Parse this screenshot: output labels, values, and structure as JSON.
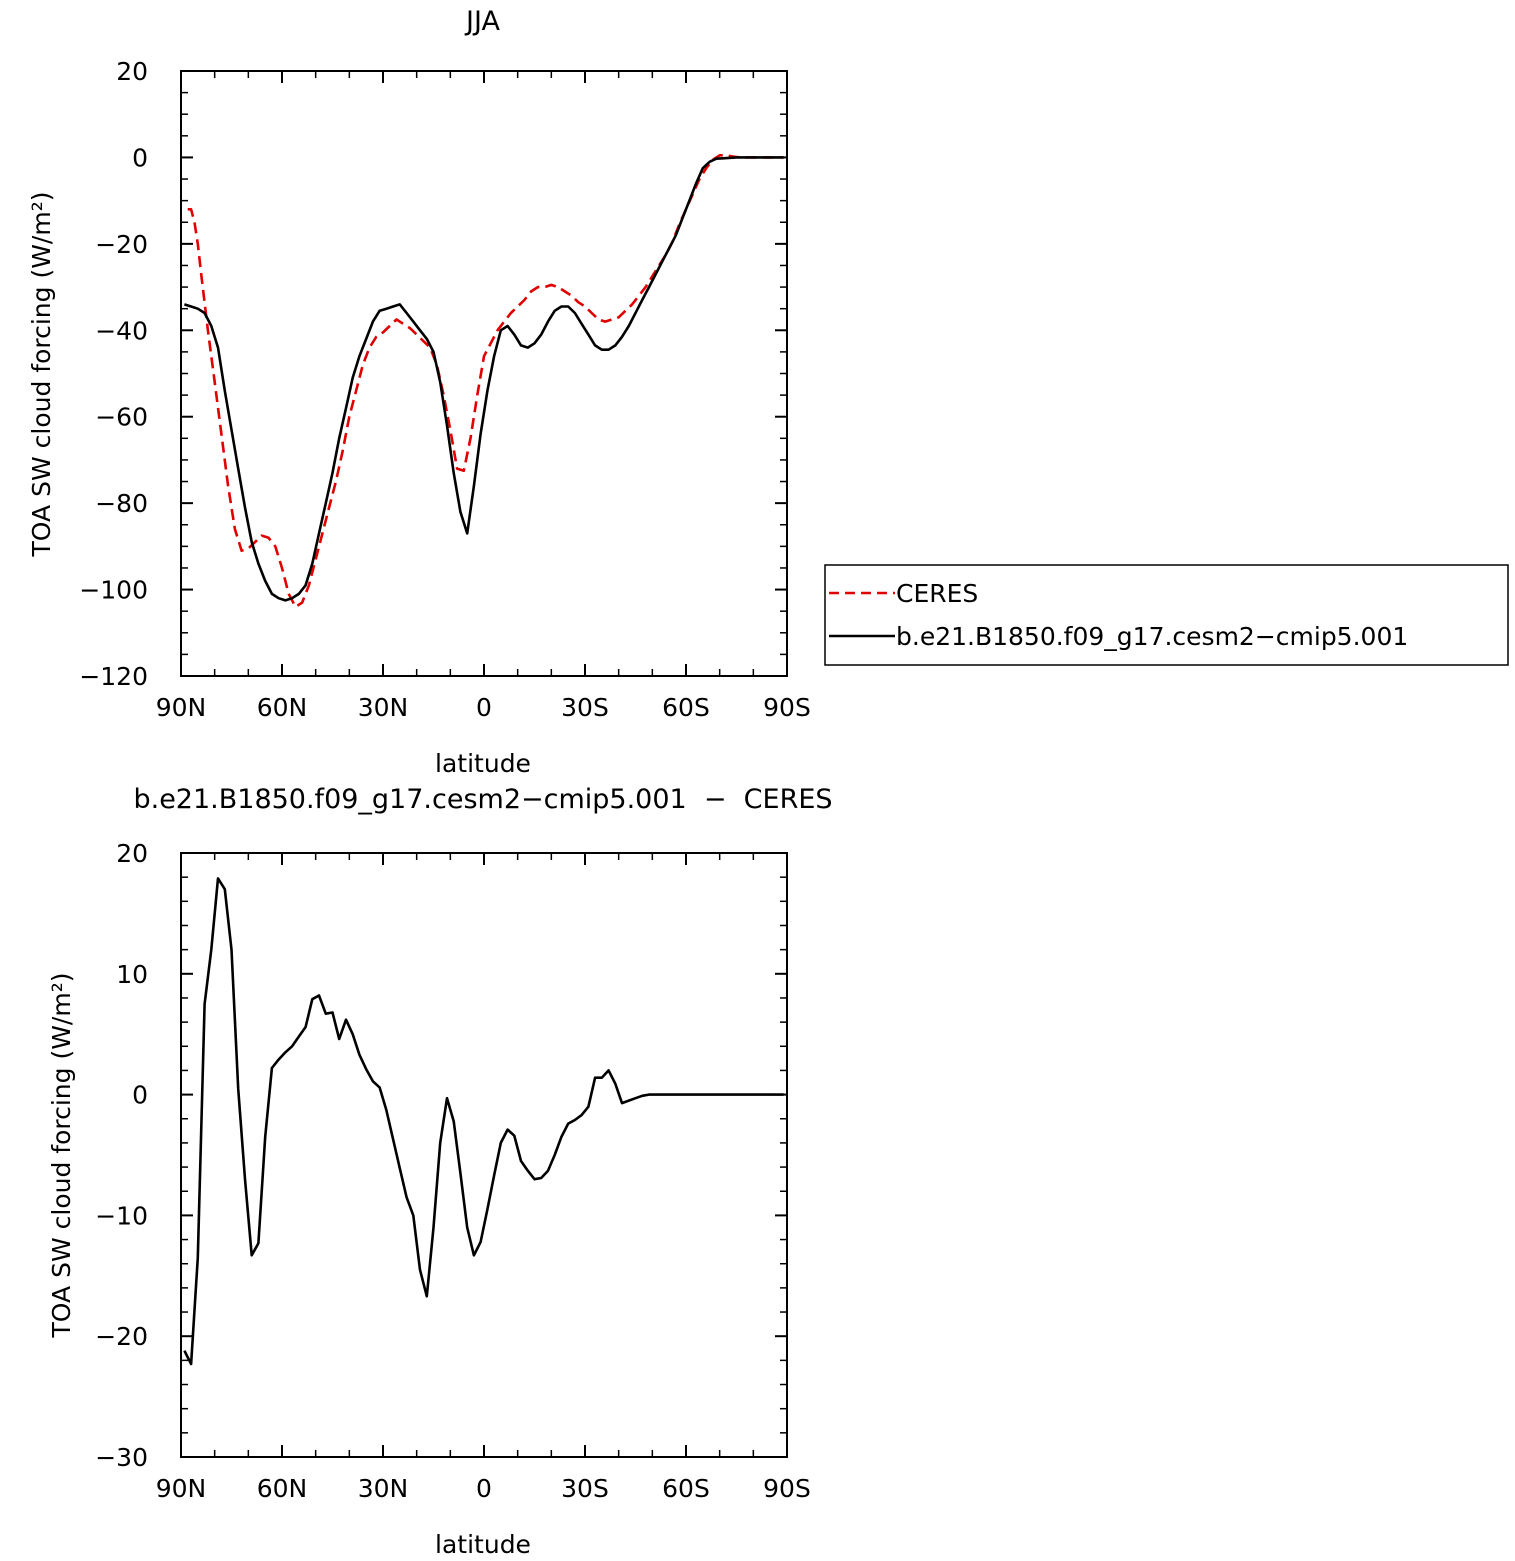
{
  "chart_data": [
    {
      "type": "line",
      "title": "JJA",
      "xlabel": "latitude",
      "ylabel": "TOA SW cloud forcing (W/m²)",
      "ylim": [
        -120,
        20
      ],
      "xlim": [
        90,
        -90
      ],
      "x_tick_values": [
        90,
        60,
        30,
        0,
        -30,
        -60,
        -90
      ],
      "x_tick_labels": [
        "90N",
        "60N",
        "30N",
        "0",
        "30S",
        "60S",
        "90S"
      ],
      "y_ticks": [
        20,
        0,
        -20,
        -40,
        -60,
        -80,
        -100,
        -120
      ],
      "y_tick_labels": [
        "20",
        "0",
        "−20",
        "−40",
        "−60",
        "−80",
        "−100",
        "−120"
      ],
      "legend": "right",
      "series": [
        {
          "name": "CERES",
          "color": "#e00000",
          "dash": "dashed",
          "points": [
            [
              88,
              -12
            ],
            [
              87,
              -12
            ],
            [
              86,
              -15
            ],
            [
              85,
              -20
            ],
            [
              84,
              -27
            ],
            [
              82,
              -40
            ],
            [
              80,
              -52
            ],
            [
              78,
              -64
            ],
            [
              76,
              -76
            ],
            [
              74,
              -86
            ],
            [
              72,
              -91
            ],
            [
              70,
              -90.5
            ],
            [
              68,
              -89
            ],
            [
              66,
              -87.5
            ],
            [
              64,
              -88
            ],
            [
              62,
              -90
            ],
            [
              60,
              -95
            ],
            [
              58,
              -101
            ],
            [
              56,
              -104
            ],
            [
              54,
              -103
            ],
            [
              52,
              -99
            ],
            [
              50,
              -93
            ],
            [
              48,
              -87
            ],
            [
              46,
              -81
            ],
            [
              44,
              -75
            ],
            [
              42,
              -68
            ],
            [
              40,
              -60
            ],
            [
              38,
              -54
            ],
            [
              36,
              -48
            ],
            [
              34,
              -44
            ],
            [
              32,
              -41.5
            ],
            [
              30,
              -40.5
            ],
            [
              28,
              -39
            ],
            [
              26,
              -37.5
            ],
            [
              24,
              -38.5
            ],
            [
              22,
              -39.5
            ],
            [
              20,
              -41
            ],
            [
              18,
              -42.5
            ],
            [
              16,
              -44
            ],
            [
              14,
              -48
            ],
            [
              12,
              -55
            ],
            [
              10,
              -63
            ],
            [
              8,
              -72
            ],
            [
              6,
              -72.5
            ],
            [
              4,
              -65
            ],
            [
              2,
              -55
            ],
            [
              0,
              -46
            ],
            [
              -2,
              -43
            ],
            [
              -4,
              -40
            ],
            [
              -6,
              -38
            ],
            [
              -8,
              -36
            ],
            [
              -10,
              -34.5
            ],
            [
              -12,
              -33
            ],
            [
              -14,
              -31
            ],
            [
              -16,
              -30
            ],
            [
              -18,
              -30
            ],
            [
              -20,
              -29.5
            ],
            [
              -22,
              -30
            ],
            [
              -24,
              -31
            ],
            [
              -26,
              -32
            ],
            [
              -28,
              -33.5
            ],
            [
              -30,
              -34.5
            ],
            [
              -32,
              -36
            ],
            [
              -34,
              -37.5
            ],
            [
              -36,
              -38
            ],
            [
              -38,
              -37.5
            ],
            [
              -40,
              -37
            ],
            [
              -42,
              -35.5
            ],
            [
              -44,
              -34
            ],
            [
              -46,
              -32
            ],
            [
              -48,
              -30
            ],
            [
              -50,
              -27.5
            ],
            [
              -52,
              -25
            ],
            [
              -54,
              -22.5
            ],
            [
              -56,
              -19.5
            ],
            [
              -58,
              -15.5
            ],
            [
              -60,
              -12
            ],
            [
              -62,
              -8.5
            ],
            [
              -64,
              -5
            ],
            [
              -66,
              -2.5
            ],
            [
              -68,
              -0.5
            ],
            [
              -70,
              0.5
            ],
            [
              -72,
              0.5
            ],
            [
              -74,
              0.2
            ],
            [
              -76,
              0
            ],
            [
              -80,
              0
            ],
            [
              -84,
              0
            ],
            [
              -88,
              0
            ],
            [
              -89,
              0
            ]
          ]
        },
        {
          "name": "b.e21.B1850.f09_g17.cesm2−cmip5.001",
          "color": "#000000",
          "dash": "solid",
          "points": [
            [
              89,
              -34
            ],
            [
              87,
              -34.5
            ],
            [
              85,
              -35
            ],
            [
              83,
              -36
            ],
            [
              81,
              -39
            ],
            [
              79,
              -44
            ],
            [
              77,
              -54
            ],
            [
              75,
              -63
            ],
            [
              73,
              -72
            ],
            [
              71,
              -81
            ],
            [
              69,
              -89
            ],
            [
              67,
              -94
            ],
            [
              65,
              -98
            ],
            [
              63,
              -101
            ],
            [
              61,
              -102
            ],
            [
              59,
              -102.5
            ],
            [
              57,
              -102
            ],
            [
              55,
              -101
            ],
            [
              53,
              -99
            ],
            [
              51,
              -94
            ],
            [
              49,
              -87
            ],
            [
              47,
              -80
            ],
            [
              45,
              -73
            ],
            [
              43,
              -65
            ],
            [
              41,
              -58
            ],
            [
              39,
              -51
            ],
            [
              37,
              -46
            ],
            [
              35,
              -42
            ],
            [
              33,
              -38
            ],
            [
              31,
              -35.5
            ],
            [
              29,
              -35
            ],
            [
              27,
              -34.5
            ],
            [
              25,
              -34
            ],
            [
              23,
              -36
            ],
            [
              21,
              -38
            ],
            [
              19,
              -40
            ],
            [
              17,
              -42
            ],
            [
              15,
              -45
            ],
            [
              13,
              -52
            ],
            [
              11,
              -62
            ],
            [
              9,
              -73
            ],
            [
              7,
              -82
            ],
            [
              5,
              -87
            ],
            [
              3,
              -76
            ],
            [
              1,
              -64
            ],
            [
              -1,
              -54
            ],
            [
              -3,
              -46
            ],
            [
              -5,
              -40
            ],
            [
              -7,
              -39
            ],
            [
              -9,
              -41
            ],
            [
              -11,
              -43.5
            ],
            [
              -13,
              -44
            ],
            [
              -15,
              -43
            ],
            [
              -17,
              -41
            ],
            [
              -19,
              -38
            ],
            [
              -21,
              -35.5
            ],
            [
              -23,
              -34.5
            ],
            [
              -25,
              -34.5
            ],
            [
              -27,
              -36
            ],
            [
              -29,
              -38.5
            ],
            [
              -31,
              -41
            ],
            [
              -33,
              -43.5
            ],
            [
              -35,
              -44.5
            ],
            [
              -37,
              -44.5
            ],
            [
              -39,
              -43.5
            ],
            [
              -41,
              -41.5
            ],
            [
              -43,
              -39
            ],
            [
              -45,
              -36
            ],
            [
              -47,
              -33
            ],
            [
              -49,
              -30
            ],
            [
              -51,
              -27
            ],
            [
              -53,
              -24
            ],
            [
              -55,
              -21
            ],
            [
              -57,
              -18
            ],
            [
              -59,
              -14
            ],
            [
              -61,
              -10
            ],
            [
              -63,
              -6
            ],
            [
              -65,
              -2.5
            ],
            [
              -67,
              -1
            ],
            [
              -69,
              -0.3
            ],
            [
              -71,
              -0.2
            ],
            [
              -75,
              0
            ],
            [
              -80,
              0
            ],
            [
              -85,
              0
            ],
            [
              -89,
              0
            ]
          ]
        }
      ]
    },
    {
      "type": "line",
      "title": "b.e21.B1850.f09_g17.cesm2−cmip5.001  −  CERES",
      "xlabel": "latitude",
      "ylabel": "TOA SW cloud forcing (W/m²)",
      "ylim": [
        -30,
        20
      ],
      "xlim": [
        90,
        -90
      ],
      "x_tick_values": [
        90,
        60,
        30,
        0,
        -30,
        -60,
        -90
      ],
      "x_tick_labels": [
        "90N",
        "60N",
        "30N",
        "0",
        "30S",
        "60S",
        "90S"
      ],
      "y_ticks": [
        20,
        10,
        0,
        -10,
        -20,
        -30
      ],
      "y_tick_labels": [
        "20",
        "10",
        "0",
        "−10",
        "−20",
        "−30"
      ],
      "series": [
        {
          "color": "#000000",
          "dash": "solid",
          "points": [
            [
              89,
              -21.2
            ],
            [
              87,
              -22.3
            ],
            [
              85,
              -13.5
            ],
            [
              83,
              7.5
            ],
            [
              81,
              12
            ],
            [
              79,
              17.9
            ],
            [
              77,
              17
            ],
            [
              75,
              12
            ],
            [
              73,
              0.5
            ],
            [
              71,
              -7
            ],
            [
              69,
              -13.3
            ],
            [
              67,
              -12.3
            ],
            [
              65,
              -3.5
            ],
            [
              63,
              2.2
            ],
            [
              61,
              2.9
            ],
            [
              59,
              3.5
            ],
            [
              57,
              4
            ],
            [
              55,
              4.8
            ],
            [
              53,
              5.6
            ],
            [
              51,
              7.9
            ],
            [
              49,
              8.2
            ],
            [
              47,
              6.7
            ],
            [
              45,
              6.8
            ],
            [
              43,
              4.6
            ],
            [
              41,
              6.2
            ],
            [
              39,
              5
            ],
            [
              37,
              3.3
            ],
            [
              35,
              2.1
            ],
            [
              33,
              1.1
            ],
            [
              31,
              0.6
            ],
            [
              29,
              -1.3
            ],
            [
              27,
              -3.7
            ],
            [
              25,
              -6.1
            ],
            [
              23,
              -8.5
            ],
            [
              21,
              -10
            ],
            [
              19,
              -14.5
            ],
            [
              17,
              -16.7
            ],
            [
              15,
              -11
            ],
            [
              13,
              -4
            ],
            [
              11,
              -0.3
            ],
            [
              9,
              -2.2
            ],
            [
              7,
              -6.5
            ],
            [
              5,
              -11
            ],
            [
              3,
              -13.3
            ],
            [
              1,
              -12.2
            ],
            [
              -1,
              -9.5
            ],
            [
              -3,
              -6.7
            ],
            [
              -5,
              -4
            ],
            [
              -7,
              -2.9
            ],
            [
              -9,
              -3.4
            ],
            [
              -11,
              -5.5
            ],
            [
              -13,
              -6.3
            ],
            [
              -15,
              -7
            ],
            [
              -17,
              -6.9
            ],
            [
              -19,
              -6.3
            ],
            [
              -21,
              -5
            ],
            [
              -23,
              -3.5
            ],
            [
              -25,
              -2.4
            ],
            [
              -27,
              -2.1
            ],
            [
              -29,
              -1.7
            ],
            [
              -31,
              -1
            ],
            [
              -33,
              1.4
            ],
            [
              -35,
              1.4
            ],
            [
              -37,
              2
            ],
            [
              -39,
              0.9
            ],
            [
              -41,
              -0.7
            ],
            [
              -43,
              -0.5
            ],
            [
              -45,
              -0.3
            ],
            [
              -47,
              -0.1
            ],
            [
              -49,
              0
            ],
            [
              -55,
              0
            ],
            [
              -60,
              0
            ],
            [
              -70,
              0
            ],
            [
              -80,
              0
            ],
            [
              -89,
              0
            ]
          ]
        }
      ]
    }
  ]
}
